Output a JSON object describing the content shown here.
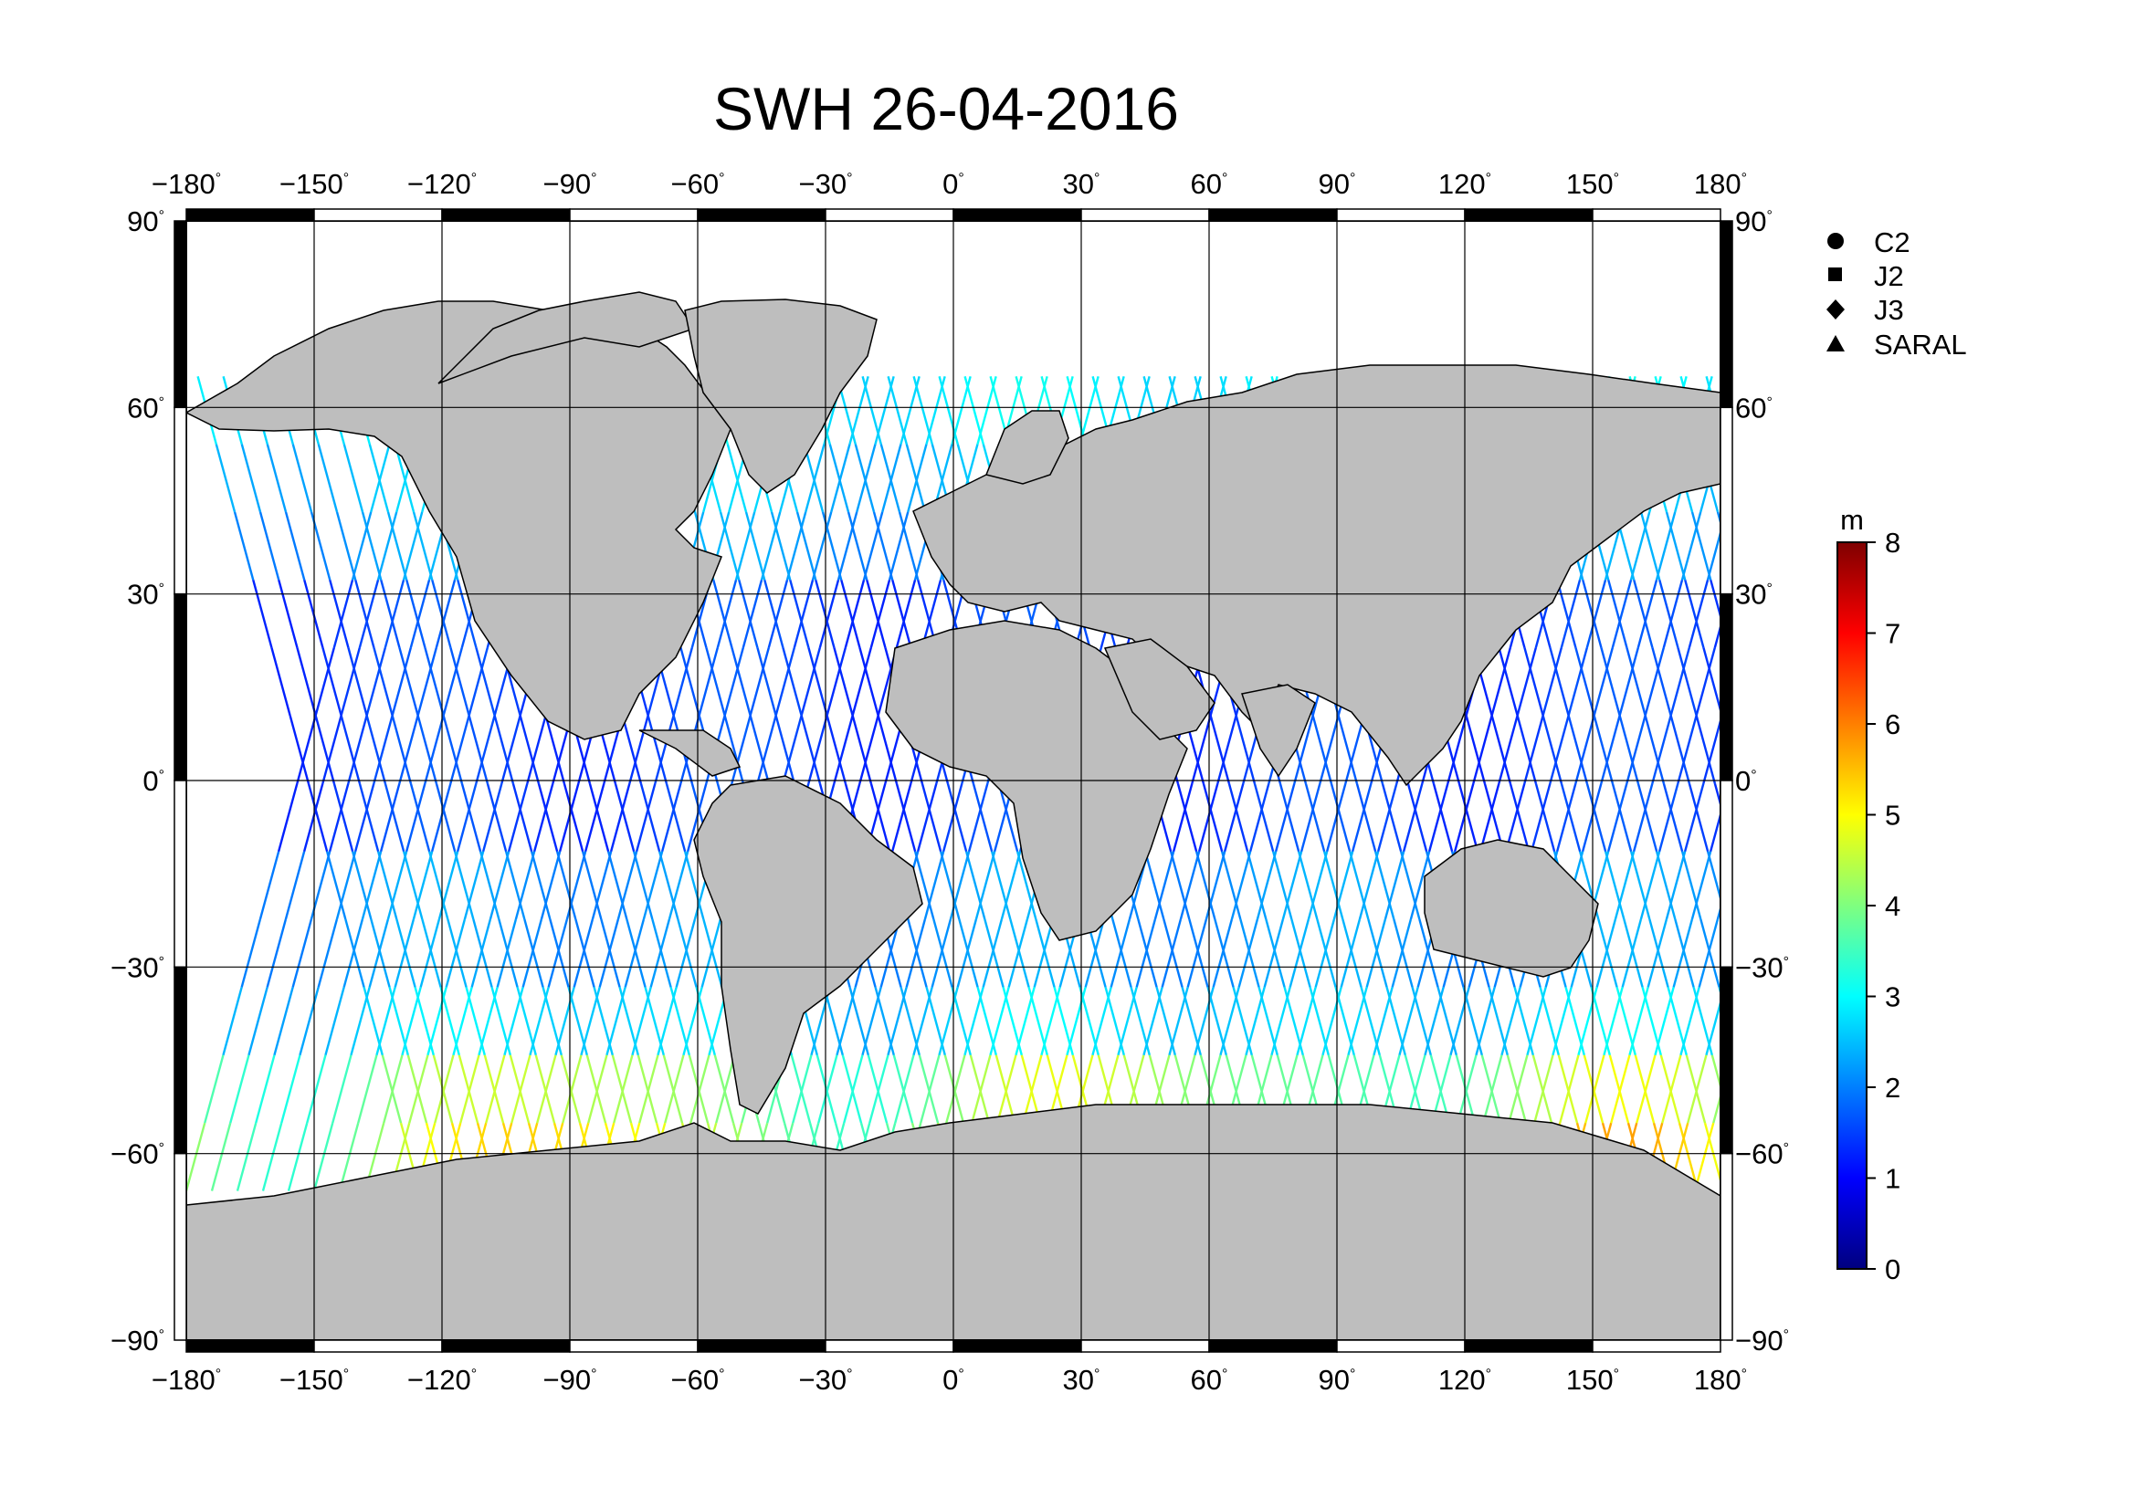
{
  "title": "SWH 26-04-2016",
  "map": {
    "lon_range": [
      -180,
      180
    ],
    "lat_range": [
      -90,
      90
    ],
    "lon_ticks": [
      {
        "value": -180,
        "label": "−180"
      },
      {
        "value": -150,
        "label": "−150"
      },
      {
        "value": -120,
        "label": "−120"
      },
      {
        "value": -90,
        "label": "−90"
      },
      {
        "value": -60,
        "label": "−60"
      },
      {
        "value": -30,
        "label": "−30"
      },
      {
        "value": 0,
        "label": "0"
      },
      {
        "value": 30,
        "label": "30"
      },
      {
        "value": 60,
        "label": "60"
      },
      {
        "value": 90,
        "label": "90"
      },
      {
        "value": 120,
        "label": "120"
      },
      {
        "value": 150,
        "label": "150"
      },
      {
        "value": 180,
        "label": "180"
      }
    ],
    "lat_ticks": [
      {
        "value": 90,
        "label": "90"
      },
      {
        "value": 60,
        "label": "60"
      },
      {
        "value": 30,
        "label": "30"
      },
      {
        "value": 0,
        "label": "0"
      },
      {
        "value": -30,
        "label": "−30"
      },
      {
        "value": -60,
        "label": "−60"
      },
      {
        "value": -90,
        "label": "−90"
      }
    ],
    "degree_symbol": "°",
    "grid": true,
    "land_color": "#bebebe",
    "ocean_color": "#ffffff"
  },
  "legend": {
    "placement": "top-right",
    "items": [
      {
        "label": "C2",
        "marker": "circle"
      },
      {
        "label": "J2",
        "marker": "square"
      },
      {
        "label": "J3",
        "marker": "diamond"
      },
      {
        "label": "SARAL",
        "marker": "triangle"
      }
    ]
  },
  "colorbar": {
    "unit": "m",
    "min": 0,
    "max": 8,
    "ticks": [
      0,
      1,
      2,
      3,
      4,
      5,
      6,
      7,
      8
    ],
    "colormap": [
      "#00007f",
      "#0000ff",
      "#007fff",
      "#00ffff",
      "#7fff7f",
      "#ffff00",
      "#ff7f00",
      "#ff0000",
      "#7f0000"
    ]
  },
  "chart_data": {
    "type": "scatter",
    "title": "SWH 26-04-2016",
    "xlim": [
      -180,
      180
    ],
    "ylim": [
      -90,
      90
    ],
    "value_range": [
      0,
      8
    ],
    "value_unit": "m",
    "series": [
      {
        "name": "C2",
        "marker": "circle"
      },
      {
        "name": "J2",
        "marker": "square"
      },
      {
        "name": "J3",
        "marker": "diamond"
      },
      {
        "name": "SARAL",
        "marker": "triangle"
      }
    ]
  }
}
